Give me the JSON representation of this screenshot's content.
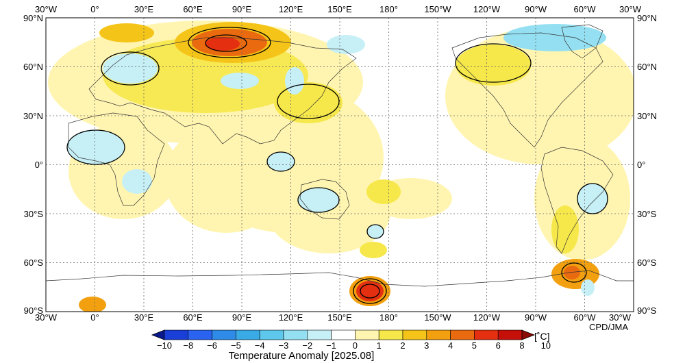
{
  "map": {
    "lon_labels": [
      "30°W",
      "0°",
      "30°E",
      "60°E",
      "90°E",
      "120°E",
      "150°E",
      "180°",
      "150°W",
      "120°W",
      "90°W",
      "60°W",
      "30°W"
    ],
    "lat_labels": [
      "90°N",
      "60°N",
      "30°N",
      "0°",
      "30°S",
      "60°S",
      "90°S"
    ],
    "credit": "CPD/JMA",
    "colorbar_title": "Temperature Anomaly [2025.08]",
    "colorbar_unit": "[˚C]",
    "colorbar_ticks": [
      "−10",
      "−8",
      "−6",
      "−5",
      "−4",
      "−3",
      "−2",
      "−1",
      "0",
      "1",
      "2",
      "3",
      "4",
      "5",
      "6",
      "8",
      "10"
    ],
    "colorbar_colors": [
      "#0a1a8c",
      "#1a3fd6",
      "#2a63f0",
      "#2f8be8",
      "#3aaae6",
      "#5dc7ec",
      "#94e0f2",
      "#c6f0f6",
      "#ffffff",
      "#fff5b0",
      "#f6e84a",
      "#f5c418",
      "#f2a010",
      "#ea6a10",
      "#e43010",
      "#c41008",
      "#8a0a04"
    ],
    "anomaly_regions": [
      {
        "name": "east-europe-siberia-warm",
        "level": 5,
        "lon": [
          42,
          118
        ],
        "lat": [
          62,
          82
        ]
      },
      {
        "name": "scandinavia-warm",
        "level": 3,
        "lon": [
          0,
          40
        ],
        "lat": [
          75,
          85
        ]
      },
      {
        "name": "kara-sea-hot",
        "level": 6,
        "lon": [
          55,
          105
        ],
        "lat": [
          66,
          80
        ]
      },
      {
        "name": "europe-cool",
        "level": -1,
        "lon": [
          -5,
          40
        ],
        "lat": [
          45,
          65
        ]
      },
      {
        "name": "west-siberia-cool",
        "level": -1,
        "lon": [
          70,
          100
        ],
        "lat": [
          45,
          60
        ]
      },
      {
        "name": "east-siberia-cool",
        "level": -1,
        "lon": [
          115,
          135
        ],
        "lat": [
          45,
          65
        ]
      },
      {
        "name": "east-asia-warm",
        "level": 2,
        "lon": [
          110,
          155
        ],
        "lat": [
          30,
          50
        ]
      },
      {
        "name": "west-africa-cool",
        "level": -1,
        "lon": [
          -20,
          20
        ],
        "lat": [
          0,
          20
        ]
      },
      {
        "name": "southern-africa-cool",
        "level": -1,
        "lon": [
          15,
          40
        ],
        "lat": [
          -25,
          -5
        ]
      },
      {
        "name": "maritime-continent-cool",
        "level": -1,
        "lon": [
          105,
          130
        ],
        "lat": [
          -5,
          5
        ]
      },
      {
        "name": "australia-cool",
        "level": -1,
        "lon": [
          125,
          150
        ],
        "lat": [
          -35,
          -20
        ]
      },
      {
        "name": "new-zealand-cool",
        "level": -1,
        "lon": [
          163,
          178
        ],
        "lat": [
          -45,
          -35
        ]
      },
      {
        "name": "greenland-canada-cool",
        "level": -1,
        "lon": [
          -115,
          -55
        ],
        "lat": [
          68,
          84
        ]
      },
      {
        "name": "south-america-cool",
        "level": -1,
        "lon": [
          -70,
          -45
        ],
        "lat": [
          -35,
          -20
        ]
      },
      {
        "name": "antarctic-peninsula-warm",
        "level": 4,
        "lon": [
          -85,
          -55
        ],
        "lat": [
          -75,
          -60
        ]
      },
      {
        "name": "ross-ice-shelf-hot",
        "level": 6,
        "lon": [
          150,
          185
        ],
        "lat": [
          -85,
          -70
        ]
      }
    ]
  }
}
